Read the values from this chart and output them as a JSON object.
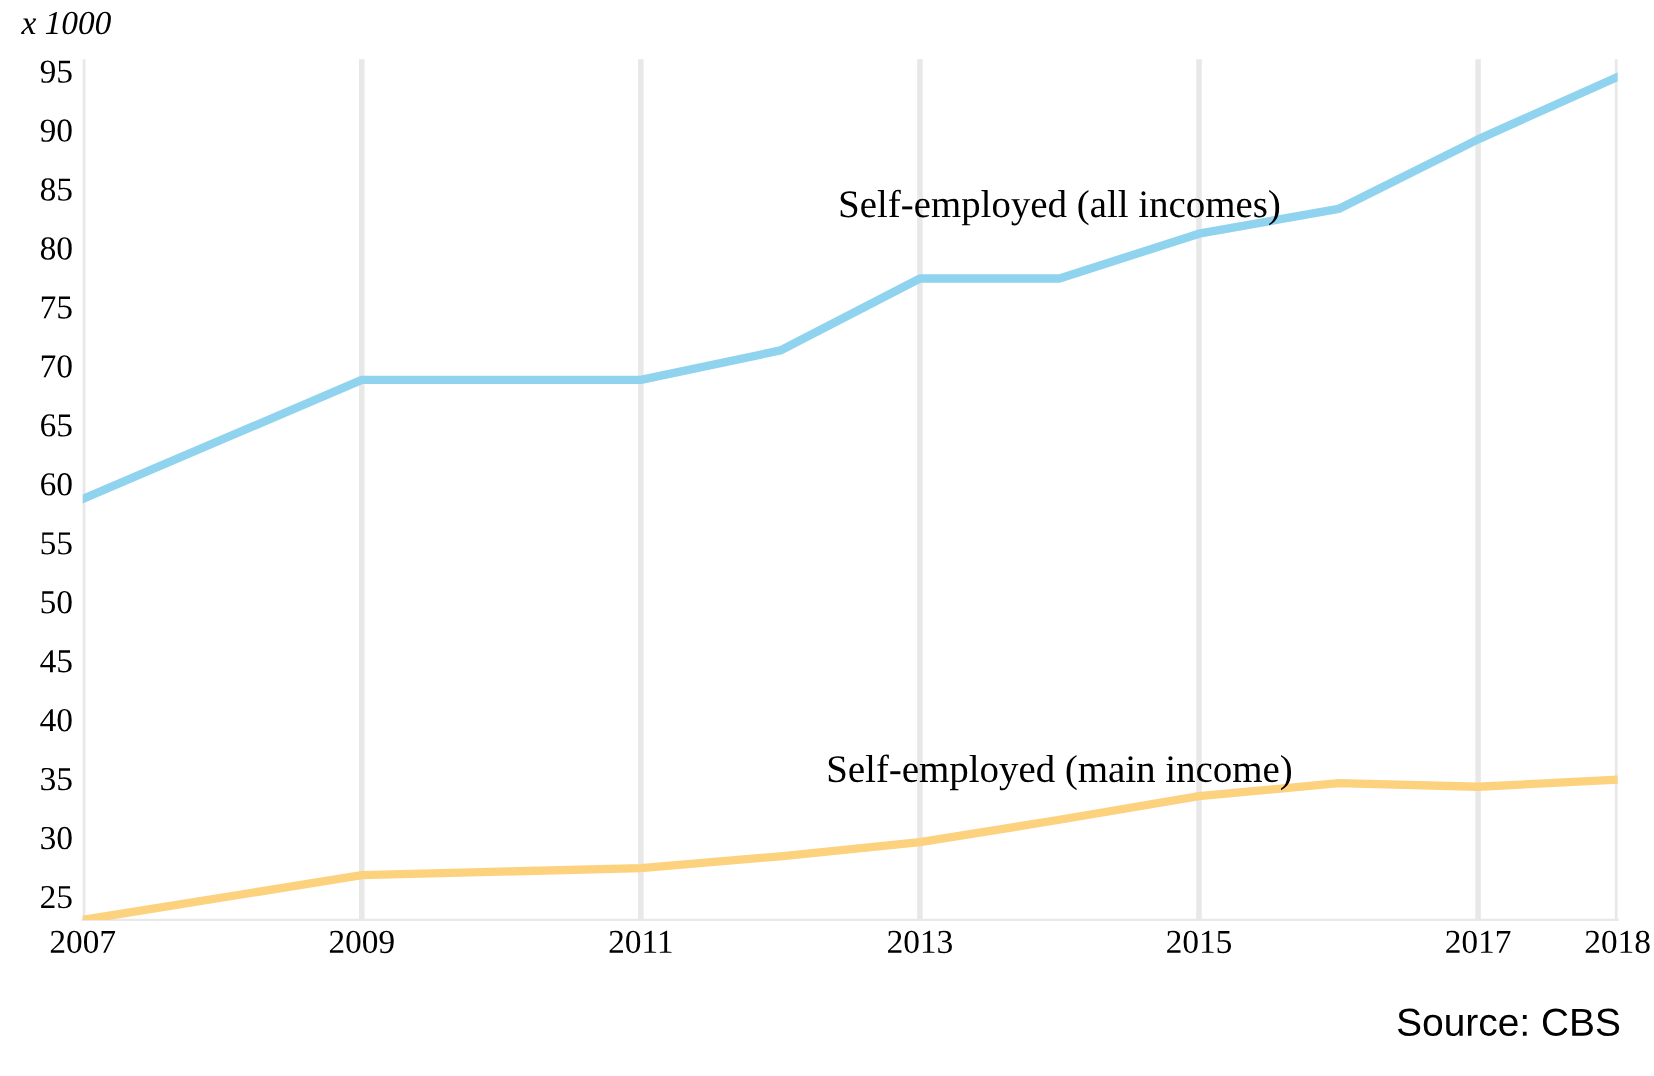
{
  "chart_data": {
    "type": "line",
    "ylabel": "x 1000",
    "x": [
      2007,
      2009,
      2011,
      2012,
      2013,
      2014,
      2015,
      2016,
      2017,
      2018
    ],
    "series": [
      {
        "name": "Self-employed (all incomes)",
        "color": "#8fd3ef",
        "values": [
          58.7,
          68.8,
          68.8,
          71.3,
          77.4,
          77.4,
          81.2,
          83.3,
          89.2,
          94.5
        ]
      },
      {
        "name": "Self-employed (main income)",
        "color": "#fdd27e",
        "values": [
          23.0,
          26.8,
          27.4,
          28.4,
          29.6,
          31.5,
          33.5,
          34.6,
          34.3,
          34.9
        ]
      }
    ],
    "xlim": [
      2007,
      2018
    ],
    "xticks": [
      2007,
      2009,
      2011,
      2013,
      2015,
      2017,
      2018
    ],
    "ylim": [
      23,
      96
    ],
    "yticks": [
      25,
      30,
      35,
      40,
      45,
      50,
      55,
      60,
      65,
      70,
      75,
      80,
      85,
      90,
      95
    ],
    "grid": "x",
    "legend": false,
    "marker": "none",
    "line_style": "solid",
    "annotations": [
      "Source: CBS"
    ]
  }
}
